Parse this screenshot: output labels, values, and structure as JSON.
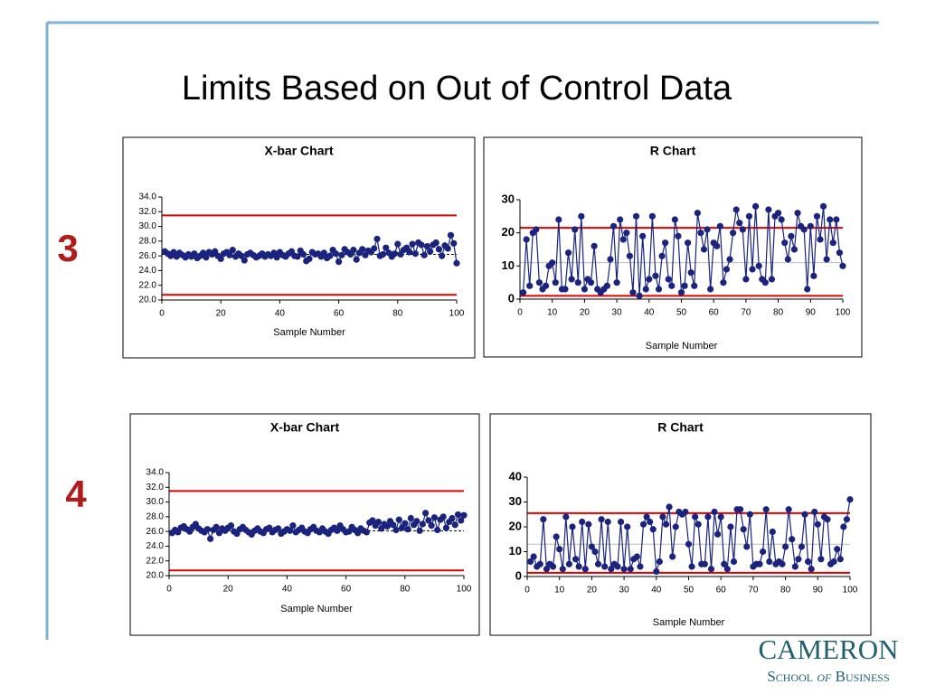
{
  "title": "Limits Based on Out of Control Data",
  "row_labels": [
    "3",
    "4"
  ],
  "logo": {
    "name": "CAMERON",
    "school": "School",
    "of": "of",
    "business": "Business"
  },
  "chart_data": [
    {
      "type": "line",
      "title": "X-bar Chart",
      "xlabel": "Sample Number",
      "color": "#1a237e",
      "xlim": [
        0,
        100
      ],
      "xticks": [
        0,
        20,
        40,
        60,
        80,
        100
      ],
      "ylim": [
        20,
        34
      ],
      "yticks": [
        {
          "value": 20,
          "label": "20.0"
        },
        {
          "value": 22,
          "label": "22.0"
        },
        {
          "value": 24,
          "label": "24.0"
        },
        {
          "value": 26,
          "label": "26.0"
        },
        {
          "value": 28,
          "label": "28.0"
        },
        {
          "value": 30,
          "label": "30.0"
        },
        {
          "value": 32,
          "label": "32.0"
        },
        {
          "value": 34,
          "label": "34.0"
        }
      ],
      "hlines": [
        {
          "value": 31.5,
          "color": "#e00000"
        },
        {
          "value": 20.7,
          "color": "#e00000"
        },
        {
          "value": 26.2,
          "color": "#000000",
          "dashed": true
        }
      ],
      "x": [
        1,
        2,
        3,
        4,
        5,
        6,
        7,
        8,
        9,
        10,
        11,
        12,
        13,
        14,
        15,
        16,
        17,
        18,
        19,
        20,
        21,
        22,
        23,
        24,
        25,
        26,
        27,
        28,
        29,
        30,
        31,
        32,
        33,
        34,
        35,
        36,
        37,
        38,
        39,
        40,
        41,
        42,
        43,
        44,
        45,
        46,
        47,
        48,
        49,
        50,
        51,
        52,
        53,
        54,
        55,
        56,
        57,
        58,
        59,
        60,
        61,
        62,
        63,
        64,
        65,
        66,
        67,
        68,
        69,
        70,
        71,
        72,
        73,
        74,
        75,
        76,
        77,
        78,
        79,
        80,
        81,
        82,
        83,
        84,
        85,
        86,
        87,
        88,
        89,
        90,
        91,
        92,
        93,
        94,
        95,
        96,
        97,
        98,
        99,
        100
      ],
      "values": [
        26.6,
        26.3,
        26.0,
        26.5,
        25.9,
        26.4,
        26.1,
        25.8,
        26.2,
        25.9,
        26.3,
        25.7,
        26.0,
        26.4,
        25.8,
        26.5,
        26.2,
        26.6,
        26.0,
        25.6,
        26.3,
        26.5,
        26.1,
        26.8,
        25.9,
        26.3,
        26.0,
        25.4,
        26.2,
        26.4,
        26.1,
        25.8,
        26.0,
        26.3,
        25.9,
        26.2,
        26.0,
        26.4,
        25.8,
        26.5,
        26.1,
        25.9,
        26.3,
        26.6,
        26.0,
        25.9,
        26.7,
        26.2,
        25.3,
        25.6,
        26.5,
        26.2,
        26.3,
        25.9,
        26.4,
        25.7,
        26.0,
        26.8,
        26.3,
        25.2,
        26.1,
        26.9,
        26.5,
        26.2,
        26.8,
        25.5,
        26.4,
        26.9,
        26.1,
        26.7,
        26.5,
        27.0,
        28.3,
        26.0,
        26.2,
        27.1,
        26.4,
        25.9,
        26.3,
        27.6,
        26.2,
        26.8,
        27.1,
        26.5,
        27.6,
        26.3,
        27.8,
        27.5,
        26.1,
        27.3,
        26.6,
        27.5,
        27.8,
        26.9,
        26.0,
        27.4,
        27.0,
        28.8,
        27.7,
        25.0
      ]
    },
    {
      "type": "line",
      "title": "R Chart",
      "xlabel": "Sample Number",
      "color": "#1a237e",
      "xlim": [
        0,
        100
      ],
      "xticks": [
        0,
        10,
        20,
        30,
        40,
        50,
        60,
        70,
        80,
        90,
        100
      ],
      "ylim": [
        0,
        30
      ],
      "yticks": [
        0,
        10,
        20,
        30
      ],
      "hlines": [
        {
          "value": 21.5,
          "color": "#e00000"
        },
        {
          "value": 1,
          "color": "#e00000"
        },
        {
          "value": 11,
          "color": "#bbbbbb"
        }
      ],
      "x": [
        1,
        2,
        3,
        4,
        5,
        6,
        7,
        8,
        9,
        10,
        11,
        12,
        13,
        14,
        15,
        16,
        17,
        18,
        19,
        20,
        21,
        22,
        23,
        24,
        25,
        26,
        27,
        28,
        29,
        30,
        31,
        32,
        33,
        34,
        35,
        36,
        37,
        38,
        39,
        40,
        41,
        42,
        43,
        44,
        45,
        46,
        47,
        48,
        49,
        50,
        51,
        52,
        53,
        54,
        55,
        56,
        57,
        58,
        59,
        60,
        61,
        62,
        63,
        64,
        65,
        66,
        67,
        68,
        69,
        70,
        71,
        72,
        73,
        74,
        75,
        76,
        77,
        78,
        79,
        80,
        81,
        82,
        83,
        84,
        85,
        86,
        87,
        88,
        89,
        90,
        91,
        92,
        93,
        94,
        95,
        96,
        97,
        98,
        99,
        100
      ],
      "values": [
        2,
        18,
        4,
        20,
        21,
        5,
        3,
        4,
        10,
        11,
        5,
        24,
        3,
        3,
        14,
        6,
        21,
        5,
        25,
        3,
        6,
        5,
        16,
        3,
        2,
        3,
        4,
        12,
        22,
        5,
        24,
        18,
        20,
        13,
        2,
        25,
        1,
        19,
        3,
        6,
        25,
        7,
        3,
        13,
        17,
        6,
        4,
        24,
        19,
        2,
        4,
        17,
        8,
        4,
        26,
        20,
        15,
        21,
        3,
        17,
        16,
        22,
        5,
        9,
        12,
        20,
        27,
        23,
        21,
        6,
        25,
        9,
        28,
        10,
        6,
        5,
        27,
        6,
        25,
        26,
        24,
        17,
        12,
        19,
        15,
        26,
        22,
        21,
        3,
        22,
        7,
        25,
        18,
        28,
        12,
        24,
        17,
        24,
        14,
        10
      ]
    },
    {
      "type": "line",
      "title": "X-bar Chart",
      "xlabel": "Sample Number",
      "color": "#1a237e",
      "xlim": [
        0,
        100
      ],
      "xticks": [
        0,
        20,
        40,
        60,
        80,
        100
      ],
      "ylim": [
        20,
        34
      ],
      "yticks": [
        {
          "value": 20,
          "label": "20.0"
        },
        {
          "value": 22,
          "label": "22.0"
        },
        {
          "value": 24,
          "label": "24.0"
        },
        {
          "value": 26,
          "label": "26.0"
        },
        {
          "value": 28,
          "label": "28.0"
        },
        {
          "value": 30,
          "label": "30.0"
        },
        {
          "value": 32,
          "label": "32.0"
        },
        {
          "value": 34,
          "label": "34.0"
        }
      ],
      "hlines": [
        {
          "value": 31.5,
          "color": "#e00000"
        },
        {
          "value": 20.7,
          "color": "#e00000"
        },
        {
          "value": 26.1,
          "color": "#000000",
          "dashed": true
        }
      ],
      "x": [
        1,
        2,
        3,
        4,
        5,
        6,
        7,
        8,
        9,
        10,
        11,
        12,
        13,
        14,
        15,
        16,
        17,
        18,
        19,
        20,
        21,
        22,
        23,
        24,
        25,
        26,
        27,
        28,
        29,
        30,
        31,
        32,
        33,
        34,
        35,
        36,
        37,
        38,
        39,
        40,
        41,
        42,
        43,
        44,
        45,
        46,
        47,
        48,
        49,
        50,
        51,
        52,
        53,
        54,
        55,
        56,
        57,
        58,
        59,
        60,
        61,
        62,
        63,
        64,
        65,
        66,
        67,
        68,
        69,
        70,
        71,
        72,
        73,
        74,
        75,
        76,
        77,
        78,
        79,
        80,
        81,
        82,
        83,
        84,
        85,
        86,
        87,
        88,
        89,
        90,
        91,
        92,
        93,
        94,
        95,
        96,
        97,
        98,
        99,
        100
      ],
      "values": [
        25.8,
        26.2,
        25.9,
        26.5,
        26.7,
        26.3,
        26.0,
        26.6,
        27.0,
        26.4,
        26.1,
        25.9,
        26.3,
        25.0,
        26.2,
        26.6,
        25.8,
        26.4,
        26.1,
        26.5,
        26.8,
        26.0,
        25.7,
        26.3,
        26.6,
        26.2,
        25.9,
        25.6,
        26.1,
        26.4,
        26.0,
        25.8,
        26.3,
        26.5,
        25.9,
        26.2,
        26.4,
        25.7,
        26.0,
        26.3,
        26.1,
        26.8,
        25.9,
        26.2,
        26.5,
        26.0,
        25.8,
        26.3,
        26.6,
        26.1,
        25.9,
        26.4,
        26.0,
        25.7,
        26.2,
        26.5,
        26.1,
        26.8,
        26.3,
        25.9,
        26.0,
        26.6,
        26.2,
        25.8,
        26.4,
        26.1,
        25.9,
        27.2,
        27.5,
        26.8,
        27.3,
        26.4,
        27.0,
        26.7,
        27.4,
        26.9,
        26.2,
        27.6,
        26.5,
        27.1,
        26.3,
        27.8,
        26.9,
        27.4,
        26.1,
        27.0,
        28.5,
        27.5,
        26.8,
        27.9,
        26.2,
        27.6,
        28.0,
        26.5,
        27.3,
        27.8,
        26.9,
        28.3,
        27.5,
        28.2
      ]
    },
    {
      "type": "line",
      "title": "R Chart",
      "xlabel": "Sample Number",
      "color": "#1a237e",
      "xlim": [
        0,
        100
      ],
      "xticks": [
        0,
        10,
        20,
        30,
        40,
        50,
        60,
        70,
        80,
        90,
        100
      ],
      "ylim": [
        0,
        40
      ],
      "yticks": [
        0,
        10,
        20,
        30,
        40
      ],
      "hlines": [
        {
          "value": 25.5,
          "color": "#e00000"
        },
        {
          "value": 1.5,
          "color": "#e00000"
        },
        {
          "value": 13,
          "color": "#bbbbbb"
        }
      ],
      "x": [
        1,
        2,
        3,
        4,
        5,
        6,
        7,
        8,
        9,
        10,
        11,
        12,
        13,
        14,
        15,
        16,
        17,
        18,
        19,
        20,
        21,
        22,
        23,
        24,
        25,
        26,
        27,
        28,
        29,
        30,
        31,
        32,
        33,
        34,
        35,
        36,
        37,
        38,
        39,
        40,
        41,
        42,
        43,
        44,
        45,
        46,
        47,
        48,
        49,
        50,
        51,
        52,
        53,
        54,
        55,
        56,
        57,
        58,
        59,
        60,
        61,
        62,
        63,
        64,
        65,
        66,
        67,
        68,
        69,
        70,
        71,
        72,
        73,
        74,
        75,
        76,
        77,
        78,
        79,
        80,
        81,
        82,
        83,
        84,
        85,
        86,
        87,
        88,
        89,
        90,
        91,
        92,
        93,
        94,
        95,
        96,
        97,
        98,
        99,
        100
      ],
      "values": [
        6,
        8,
        4,
        5,
        23,
        3,
        5,
        4,
        16,
        11,
        3,
        24,
        5,
        20,
        7,
        4,
        22,
        3,
        21,
        12,
        10,
        5,
        23,
        4,
        22,
        3,
        5,
        4,
        22,
        3,
        20,
        3,
        7,
        8,
        4,
        21,
        24,
        22,
        19,
        2,
        6,
        24,
        21,
        28,
        8,
        20,
        26,
        25,
        26,
        13,
        4,
        24,
        21,
        5,
        5,
        24,
        3,
        26,
        17,
        24,
        5,
        3,
        20,
        6,
        27,
        27,
        19,
        12,
        25,
        4,
        5,
        5,
        10,
        27,
        6,
        18,
        5,
        6,
        5,
        12,
        27,
        15,
        4,
        7,
        12,
        25,
        6,
        3,
        26,
        21,
        7,
        24,
        23,
        5,
        6,
        11,
        7,
        20,
        23,
        31
      ]
    }
  ]
}
